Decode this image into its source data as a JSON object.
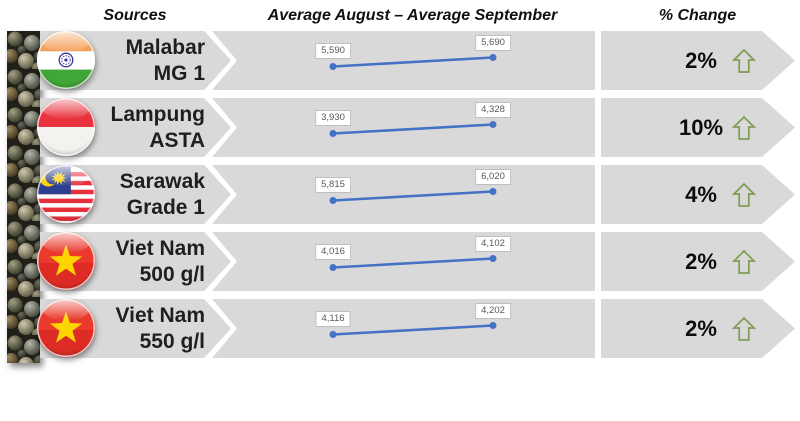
{
  "header": {
    "sources_label": "Sources",
    "period_label": "Average August – Average September",
    "change_label": "% Change"
  },
  "rows": [
    {
      "source_line1": "Malabar",
      "source_line2": "MG 1",
      "flag": "india-flag-icon",
      "aug_label": "5,590",
      "sep_label": "5,690",
      "change": "2%",
      "direction": "up"
    },
    {
      "source_line1": "Lampung",
      "source_line2": "ASTA",
      "flag": "indonesia-flag-icon",
      "aug_label": "3,930",
      "sep_label": "4,328",
      "change": "10%",
      "direction": "up"
    },
    {
      "source_line1": "Sarawak",
      "source_line2": "Grade 1",
      "flag": "malaysia-flag-icon",
      "aug_label": "5,815",
      "sep_label": "6,020",
      "change": "4%",
      "direction": "up"
    },
    {
      "source_line1": "Viet Nam",
      "source_line2": "500 g/l",
      "flag": "vietnam-flag-icon",
      "aug_label": "4,016",
      "sep_label": "4,102",
      "change": "2%",
      "direction": "up"
    },
    {
      "source_line1": "Viet Nam",
      "source_line2": "550 g/l",
      "flag": "vietnam-flag-icon",
      "aug_label": "4,116",
      "sep_label": "4,202",
      "change": "2%",
      "direction": "up"
    }
  ],
  "chart_data": {
    "type": "line",
    "x": [
      "Average August",
      "Average September"
    ],
    "series": [
      {
        "name": "Malabar MG 1",
        "values": [
          5590,
          5690
        ],
        "change": "2%"
      },
      {
        "name": "Lampung ASTA",
        "values": [
          3930,
          4328
        ],
        "change": "10%"
      },
      {
        "name": "Sarawak Grade 1",
        "values": [
          5815,
          6020
        ],
        "change": "4%"
      },
      {
        "name": "Viet Nam 500 g/l",
        "values": [
          4016,
          4102
        ],
        "change": "2%"
      },
      {
        "name": "Viet Nam 550 g/l",
        "values": [
          4116,
          4202
        ],
        "change": "2%"
      }
    ],
    "legend_position": "none",
    "grid": false,
    "data_labels": true
  },
  "colors": {
    "bar_gray": "#d9d9d9",
    "line_blue": "#4472c4",
    "arrow_green": "#7d9d53",
    "value_label_text": "#595959"
  }
}
